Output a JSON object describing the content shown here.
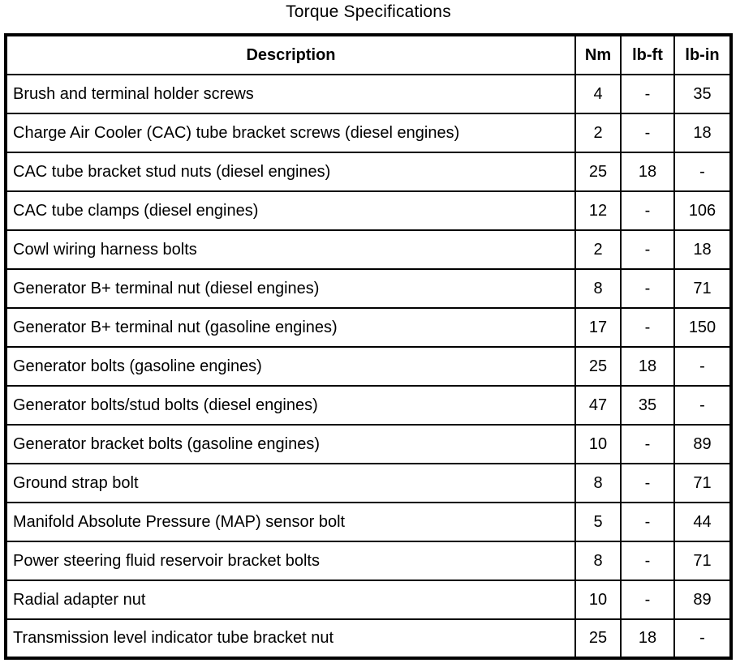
{
  "title": "Torque Specifications",
  "table": {
    "columns": [
      "Description",
      "Nm",
      "lb-ft",
      "lb-in"
    ],
    "rows": [
      {
        "description": "Brush and terminal holder screws",
        "nm": "4",
        "lbft": "-",
        "lbin": "35"
      },
      {
        "description": "Charge Air Cooler (CAC) tube bracket screws (diesel engines)",
        "nm": "2",
        "lbft": "-",
        "lbin": "18"
      },
      {
        "description": "CAC tube bracket stud nuts (diesel engines)",
        "nm": "25",
        "lbft": "18",
        "lbin": "-"
      },
      {
        "description": "CAC tube clamps (diesel engines)",
        "nm": "12",
        "lbft": "-",
        "lbin": "106"
      },
      {
        "description": "Cowl wiring harness bolts",
        "nm": "2",
        "lbft": "-",
        "lbin": "18"
      },
      {
        "description": "Generator B+ terminal nut (diesel engines)",
        "nm": "8",
        "lbft": "-",
        "lbin": "71"
      },
      {
        "description": "Generator B+ terminal nut (gasoline engines)",
        "nm": "17",
        "lbft": "-",
        "lbin": "150"
      },
      {
        "description": "Generator bolts (gasoline engines)",
        "nm": "25",
        "lbft": "18",
        "lbin": "-"
      },
      {
        "description": "Generator bolts/stud bolts (diesel engines)",
        "nm": "47",
        "lbft": "35",
        "lbin": "-"
      },
      {
        "description": "Generator bracket bolts (gasoline engines)",
        "nm": "10",
        "lbft": "-",
        "lbin": "89"
      },
      {
        "description": "Ground strap bolt",
        "nm": "8",
        "lbft": "-",
        "lbin": "71"
      },
      {
        "description": "Manifold Absolute Pressure (MAP) sensor bolt",
        "nm": "5",
        "lbft": "-",
        "lbin": "44"
      },
      {
        "description": "Power steering fluid reservoir bracket bolts",
        "nm": "8",
        "lbft": "-",
        "lbin": "71"
      },
      {
        "description": "Radial adapter nut",
        "nm": "10",
        "lbft": "-",
        "lbin": "89"
      },
      {
        "description": "Transmission level indicator tube bracket nut",
        "nm": "25",
        "lbft": "18",
        "lbin": "-"
      }
    ]
  }
}
